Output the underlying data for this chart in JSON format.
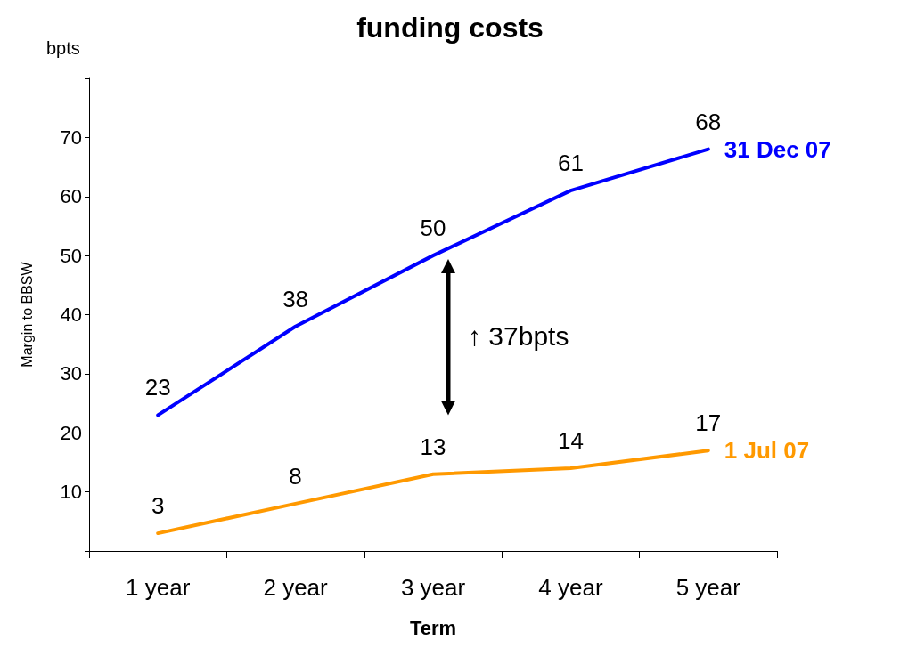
{
  "chart_data": {
    "type": "line",
    "title": "funding costs",
    "xlabel": "Term",
    "ylabel": "Margin to BBSW",
    "categories": [
      "1 year",
      "2 year",
      "3 year",
      "4 year",
      "5 year"
    ],
    "series": [
      {
        "name": "31 Dec 07",
        "color": "#0000ff",
        "values": [
          23,
          38,
          50,
          61,
          68
        ]
      },
      {
        "name": "1 Jul 07",
        "color": "#ff9900",
        "values": [
          3,
          8,
          13,
          14,
          17
        ]
      }
    ],
    "ylim": [
      0,
      80
    ],
    "yticks": [
      {
        "value": 0,
        "label": null
      },
      10,
      20,
      30,
      40,
      50,
      60,
      70,
      {
        "value": 80,
        "label": null
      }
    ],
    "data_labels": true,
    "grid": false,
    "legend": false,
    "marker": "none",
    "line_style": "solid",
    "annotations": [
      "bpts",
      "↑ 37bpts"
    ]
  }
}
